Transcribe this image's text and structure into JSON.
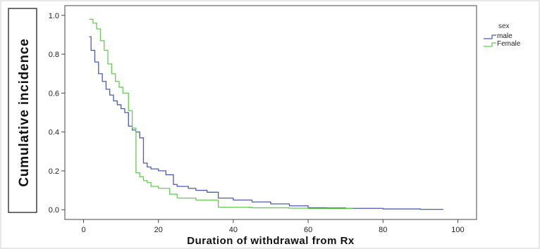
{
  "chart_data": {
    "type": "line",
    "step": true,
    "xlabel": "Duration of  withdrawal from Rx",
    "ylabel": "Cumulative incidence",
    "xlim": [
      -5,
      105
    ],
    "ylim": [
      -0.05,
      1.05
    ],
    "xticks": [
      0,
      20,
      40,
      60,
      80,
      100
    ],
    "yticks": [
      0.0,
      0.2,
      0.4,
      0.6,
      0.8,
      1.0
    ],
    "xtick_labels": [
      "0",
      "20",
      "40",
      "60",
      "80",
      "100"
    ],
    "ytick_labels": [
      "0.0",
      "0.2",
      "0.4",
      "0.6",
      "0.8",
      "1.0"
    ],
    "grid": false,
    "legend": {
      "title": "sex",
      "placement": "top-right outside"
    },
    "series": [
      {
        "name": "male",
        "color": "#4a5bb8",
        "x": [
          1.5,
          2,
          3,
          4,
          5,
          6,
          7,
          8,
          9,
          10,
          11,
          12,
          13,
          14,
          15,
          16,
          17,
          18,
          20,
          22,
          24,
          25,
          28,
          30,
          33,
          36,
          40,
          45,
          50,
          55,
          60,
          65,
          70,
          80,
          90,
          96
        ],
        "y": [
          0.89,
          0.82,
          0.76,
          0.7,
          0.66,
          0.62,
          0.59,
          0.56,
          0.54,
          0.52,
          0.5,
          0.43,
          0.41,
          0.4,
          0.37,
          0.24,
          0.22,
          0.21,
          0.2,
          0.18,
          0.13,
          0.12,
          0.11,
          0.1,
          0.09,
          0.06,
          0.05,
          0.04,
          0.03,
          0.02,
          0.01,
          0.009,
          0.007,
          0.004,
          0.002,
          0.0
        ]
      },
      {
        "name": "Female",
        "color": "#66cc55",
        "x": [
          1.5,
          2.5,
          3.5,
          4.5,
          5.5,
          6.5,
          7.5,
          8.5,
          9.5,
          10.5,
          12,
          13,
          14,
          15,
          16,
          17,
          18,
          20,
          23,
          25,
          30,
          36,
          45,
          55,
          60,
          72
        ],
        "y": [
          0.98,
          0.96,
          0.93,
          0.87,
          0.82,
          0.75,
          0.7,
          0.66,
          0.63,
          0.6,
          0.51,
          0.42,
          0.19,
          0.17,
          0.15,
          0.14,
          0.12,
          0.11,
          0.08,
          0.06,
          0.05,
          0.013,
          0.01,
          0.008,
          0.006,
          0.006
        ]
      }
    ]
  }
}
